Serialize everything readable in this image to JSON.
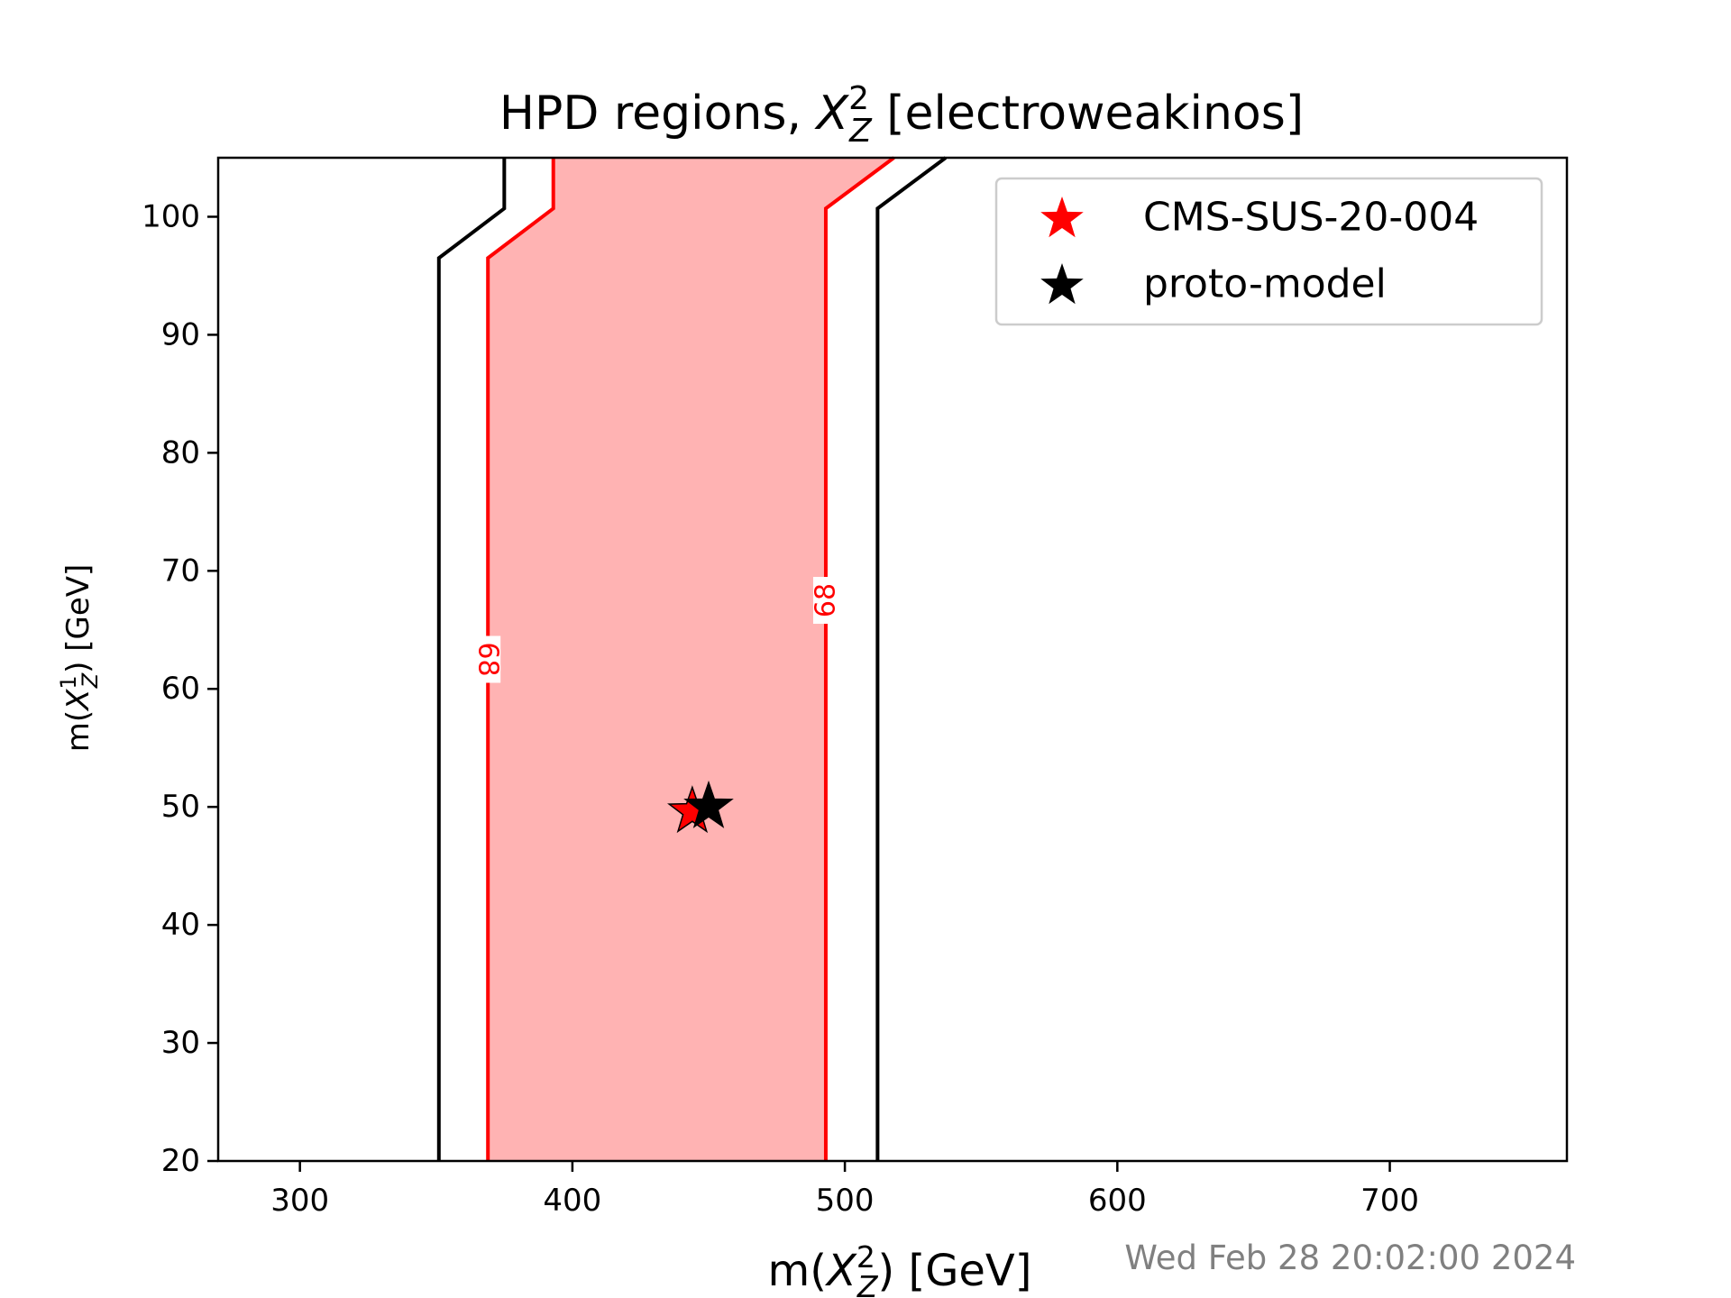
{
  "chart_data": {
    "type": "line",
    "title": {
      "pre": "HPD regions, ",
      "sym": "X",
      "sup": "2",
      "sub": "Z",
      "post": " [electroweakinos]"
    },
    "xlabel": {
      "pre": "m(",
      "sym": "X",
      "sup": "2",
      "sub": "Z",
      "post": ") [GeV]"
    },
    "ylabel": {
      "pre": "m(",
      "sym": "X",
      "sup": "1",
      "sub": "Z",
      "post": ") [GeV]"
    },
    "xlim": [
      270,
      765
    ],
    "ylim": [
      20,
      105
    ],
    "x_ticks": [
      "300",
      "400",
      "500",
      "600",
      "700"
    ],
    "y_ticks": [
      "20",
      "30",
      "40",
      "50",
      "60",
      "70",
      "80",
      "90",
      "100"
    ],
    "grid": false,
    "legend_position": "top-right",
    "colors": {
      "cms": "#ff0000",
      "proto": "#000000",
      "fill": "#ffb3b3",
      "contour_red": "#ff0000",
      "contour_black": "#000000",
      "stamp": "#808080"
    },
    "fill_region": {
      "left": [
        [
          369,
          20
        ],
        [
          369,
          96.5
        ],
        [
          393,
          100.7
        ],
        [
          393,
          105
        ]
      ],
      "right": [
        [
          493,
          20
        ],
        [
          493,
          100.7
        ],
        [
          518,
          105
        ]
      ]
    },
    "contours": [
      {
        "color": "red",
        "points": [
          [
            369,
            20
          ],
          [
            369,
            96.5
          ],
          [
            393,
            100.7
          ],
          [
            393,
            105
          ]
        ]
      },
      {
        "color": "red",
        "points": [
          [
            493,
            20
          ],
          [
            493,
            100.7
          ],
          [
            518,
            105
          ]
        ]
      },
      {
        "color": "black",
        "points": [
          [
            351,
            20
          ],
          [
            351,
            96.5
          ],
          [
            375,
            100.7
          ],
          [
            375,
            105
          ]
        ]
      },
      {
        "color": "black",
        "points": [
          [
            512,
            20
          ],
          [
            512,
            100.7
          ],
          [
            537,
            105
          ]
        ]
      }
    ],
    "contour_labels": [
      {
        "text": "68",
        "x": 369,
        "y": 62.5,
        "rotation": 90,
        "color": "red"
      },
      {
        "text": "68",
        "x": 493,
        "y": 67.5,
        "rotation": -90,
        "color": "red"
      }
    ],
    "points": [
      {
        "name": "CMS-SUS-20-004",
        "x": 444,
        "y": 49.6,
        "color": "#ff0000"
      },
      {
        "name": "proto-model",
        "x": 450,
        "y": 50,
        "color": "#000000"
      }
    ],
    "legend": [
      {
        "label": "CMS-SUS-20-004",
        "color": "#ff0000"
      },
      {
        "label": "proto-model",
        "color": "#000000"
      }
    ]
  },
  "timestamp": "Wed Feb 28 20:02:00 2024"
}
